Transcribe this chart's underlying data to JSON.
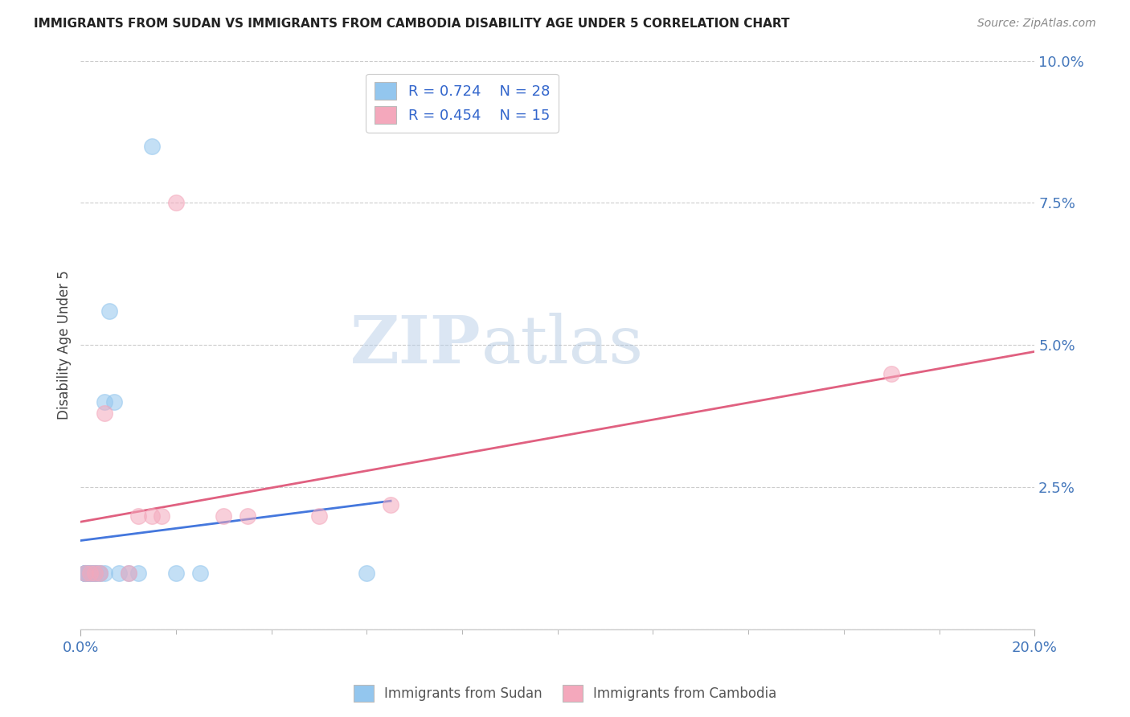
{
  "title": "IMMIGRANTS FROM SUDAN VS IMMIGRANTS FROM CAMBODIA DISABILITY AGE UNDER 5 CORRELATION CHART",
  "source": "Source: ZipAtlas.com",
  "ylabel": "Disability Age Under 5",
  "xlim": [
    0.0,
    0.2
  ],
  "ylim": [
    0.0,
    0.1
  ],
  "yticks": [
    0.0,
    0.025,
    0.05,
    0.075,
    0.1
  ],
  "ytick_labels": [
    "",
    "2.5%",
    "5.0%",
    "7.5%",
    "10.0%"
  ],
  "sudan_color": "#93C6EE",
  "cambodia_color": "#F4A8BC",
  "sudan_R": 0.724,
  "sudan_N": 28,
  "cambodia_R": 0.454,
  "cambodia_N": 15,
  "sudan_line_color": "#4477DD",
  "cambodia_line_color": "#E06080",
  "sudan_x": [
    0.001,
    0.001,
    0.001,
    0.001,
    0.001,
    0.001,
    0.002,
    0.002,
    0.002,
    0.002,
    0.002,
    0.003,
    0.003,
    0.003,
    0.003,
    0.004,
    0.004,
    0.005,
    0.005,
    0.006,
    0.007,
    0.008,
    0.01,
    0.012,
    0.015,
    0.02,
    0.025,
    0.06
  ],
  "sudan_y": [
    0.01,
    0.01,
    0.01,
    0.01,
    0.01,
    0.01,
    0.01,
    0.01,
    0.01,
    0.01,
    0.01,
    0.01,
    0.01,
    0.01,
    0.01,
    0.01,
    0.01,
    0.01,
    0.04,
    0.056,
    0.04,
    0.01,
    0.01,
    0.01,
    0.085,
    0.01,
    0.01,
    0.01
  ],
  "cambodia_x": [
    0.001,
    0.002,
    0.003,
    0.004,
    0.005,
    0.01,
    0.012,
    0.015,
    0.017,
    0.02,
    0.03,
    0.035,
    0.05,
    0.065,
    0.17
  ],
  "cambodia_y": [
    0.01,
    0.01,
    0.01,
    0.01,
    0.038,
    0.01,
    0.02,
    0.02,
    0.02,
    0.075,
    0.02,
    0.02,
    0.02,
    0.022,
    0.045
  ],
  "watermark_zip": "ZIP",
  "watermark_atlas": "atlas",
  "background_color": "#ffffff",
  "grid_color": "#cccccc",
  "legend_text_color": "#333333",
  "legend_num_color": "#3366CC",
  "tick_color": "#4477BB",
  "source_color": "#888888"
}
